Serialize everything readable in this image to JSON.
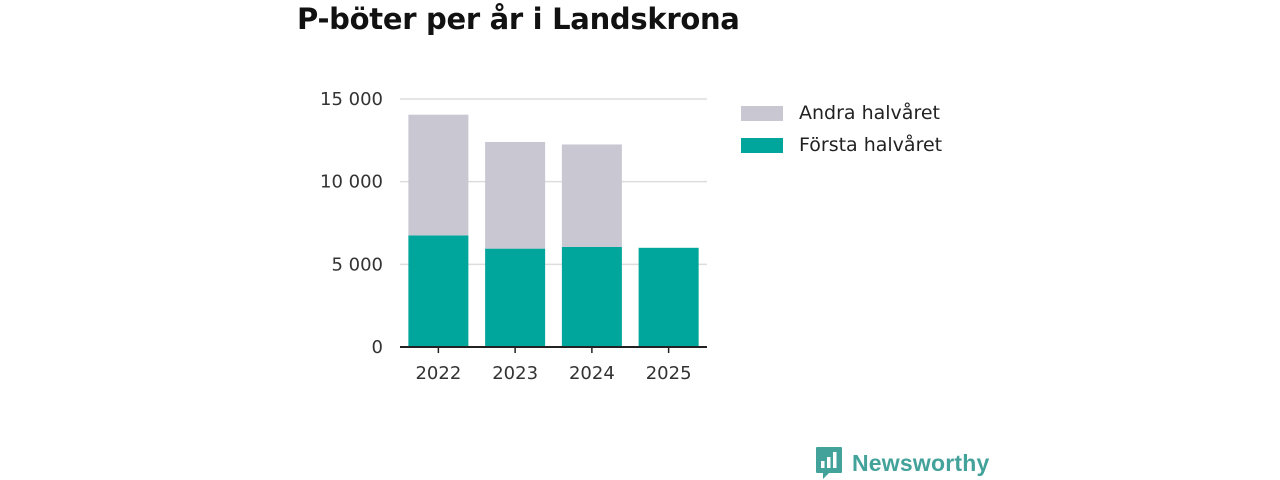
{
  "header": {
    "title": "P-böter per år i Landskrona"
  },
  "colors": {
    "first_half": "#00a59b",
    "second_half": "#c8c7d2",
    "grid": "#dddddd",
    "axis": "#222222",
    "brand": "#43a39b"
  },
  "chart_data": {
    "type": "bar",
    "stacked": true,
    "title": "P-böter per år i Landskrona",
    "categories": [
      "2022",
      "2023",
      "2024",
      "2025"
    ],
    "series": [
      {
        "name": "Första halvåret",
        "values": [
          6750,
          5950,
          6050,
          6000
        ]
      },
      {
        "name": "Andra halvåret",
        "values": [
          7300,
          6450,
          6200,
          null
        ]
      }
    ],
    "ylim": [
      0,
      15000
    ],
    "yticks": [
      0,
      5000,
      10000,
      15000
    ],
    "ytick_labels": [
      "0",
      "5 000",
      "10 000",
      "15 000"
    ],
    "xlabel": "",
    "ylabel": "",
    "grid": true,
    "legend_position": "right"
  },
  "legend": {
    "items": [
      {
        "label": "Andra halvåret",
        "icon": "grey-swatch"
      },
      {
        "label": "Första halvåret",
        "icon": "teal-swatch"
      }
    ]
  },
  "branding": {
    "name": "Newsworthy",
    "icon": "newsworthy-logo-icon"
  }
}
